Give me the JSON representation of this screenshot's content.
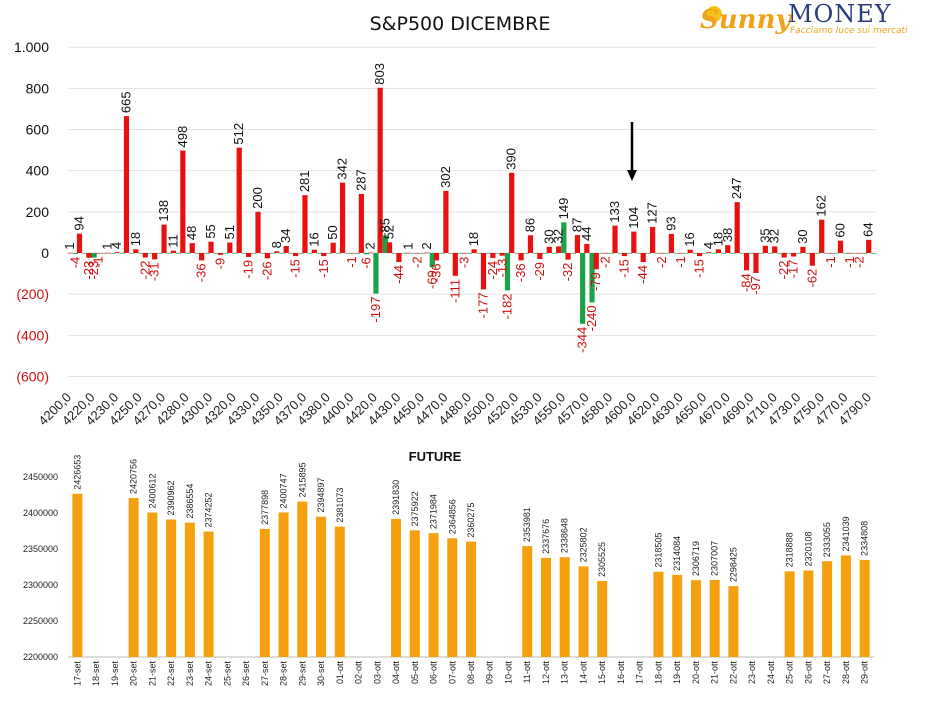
{
  "logo": {
    "brand_part1": "Sunny",
    "brand_part2": "MONEY",
    "tagline": "Facciamo luce sui mercati"
  },
  "colors": {
    "positive": "#e8110f",
    "negative": "#1aa34a",
    "future_bar": "#f5a00e",
    "neg_label": "#d0100e"
  },
  "chart_data": [
    {
      "type": "bar",
      "title": "S&P500 DICEMBRE",
      "ylim": [
        -600,
        1000
      ],
      "yticks": [
        1000,
        800,
        600,
        400,
        200,
        0,
        -200,
        -400,
        -600
      ],
      "ytick_labels": [
        "1.000",
        "800",
        "600",
        "400",
        "200",
        "0",
        "(200)",
        "(400)",
        "(600)"
      ],
      "xtick_labels": [
        "4200,0",
        "4220,0",
        "4230,0",
        "4250,0",
        "4270,0",
        "4280,0",
        "4300,0",
        "4320,0",
        "4330,0",
        "4350,0",
        "4370,0",
        "4380,0",
        "4400,0",
        "4420,0",
        "4430,0",
        "4450,0",
        "4470,0",
        "4480,0",
        "4500,0",
        "4520,0",
        "4530,0",
        "4550,0",
        "4570,0",
        "4580,0",
        "4600,0",
        "4620,0",
        "4630,0",
        "4650,0",
        "4670,0",
        "4690,0",
        "4710,0",
        "4730,0",
        "4750,0",
        "4770,0",
        "4790,0"
      ],
      "series": [
        {
          "values": [
            1,
            94,
            -23,
            -1,
            1,
            4,
            665,
            18,
            -22,
            -31,
            138,
            11,
            498,
            48,
            -36,
            55,
            -9,
            51,
            512,
            -19,
            200,
            -26,
            8,
            34,
            -15,
            281,
            16,
            -15,
            50,
            342,
            -1,
            287,
            2,
            803,
            52,
            -44,
            1,
            -2,
            2,
            -36,
            302,
            -111,
            -3,
            18,
            -177,
            -24,
            -13,
            390,
            -36,
            86,
            -29,
            30,
            32,
            -32,
            87,
            44,
            -79,
            -2,
            133,
            -15,
            104,
            -44,
            127,
            -2,
            93,
            -1,
            16,
            -15,
            4,
            18,
            38,
            247,
            -84,
            -97,
            35,
            32,
            -22,
            -17,
            30,
            -62,
            162,
            -1,
            60,
            -1,
            -2,
            64
          ]
        },
        {
          "values": [
            -4,
            -1,
            -23,
            -1,
            -1,
            -1,
            -1,
            -1,
            -1,
            -1,
            -1,
            -1,
            -1,
            -1,
            -1,
            -1,
            -1,
            -1,
            -1,
            -1,
            -1,
            -1,
            -1,
            -1,
            -1,
            -1,
            -1,
            -1,
            -1,
            -1,
            -1,
            -6,
            -197,
            85,
            -1,
            -1,
            -1,
            -1,
            -69,
            -1,
            -1,
            -1,
            -1,
            -1,
            -1,
            -1,
            -182,
            -1,
            -1,
            -1,
            -1,
            -1,
            149,
            -1,
            -344,
            -240,
            -1,
            -1,
            -1,
            -1,
            -1,
            -1,
            -1,
            -1,
            -1,
            -1,
            -1,
            -1,
            -1,
            -1,
            -1,
            -1,
            -1,
            -1,
            -1,
            -1,
            -1,
            -1,
            -1,
            -1,
            -1,
            -1,
            -1,
            -1,
            -1,
            -1
          ]
        }
      ],
      "annotation": "arrow-down"
    },
    {
      "type": "bar",
      "title": "FUTURE",
      "ylim": [
        2200000,
        2450000
      ],
      "yticks": [
        2450000,
        2400000,
        2350000,
        2300000,
        2250000,
        2200000
      ],
      "categories": [
        "17-set",
        "18-set",
        "19-set",
        "20-set",
        "21-set",
        "22-set",
        "23-set",
        "24-set",
        "25-set",
        "26-set",
        "27-set",
        "28-set",
        "29-set",
        "30-set",
        "01-ott",
        "02-ott",
        "03-ott",
        "04-ott",
        "05-ott",
        "06-ott",
        "07-ott",
        "08-ott",
        "09-ott",
        "10-ott",
        "11-ott",
        "12-ott",
        "13-ott",
        "14-ott",
        "15-ott",
        "16-ott",
        "17-ott",
        "18-ott",
        "19-ott",
        "20-ott",
        "21-ott",
        "22-ott",
        "23-ott",
        "24-ott",
        "25-ott",
        "26-ott",
        "27-ott",
        "28-ott",
        "29-ott"
      ],
      "values": [
        2426653,
        null,
        null,
        2420756,
        2400612,
        2390962,
        2386554,
        2374252,
        null,
        null,
        2377898,
        2400747,
        2415895,
        2394897,
        2381073,
        null,
        null,
        2391830,
        2375922,
        2371984,
        2364856,
        2360275,
        null,
        null,
        2353981,
        2337676,
        2338648,
        2325802,
        2305525,
        null,
        null,
        2318505,
        2314084,
        2306719,
        2307007,
        2298425,
        null,
        null,
        2318888,
        2320108,
        2333055,
        2341039,
        2334808
      ]
    }
  ]
}
